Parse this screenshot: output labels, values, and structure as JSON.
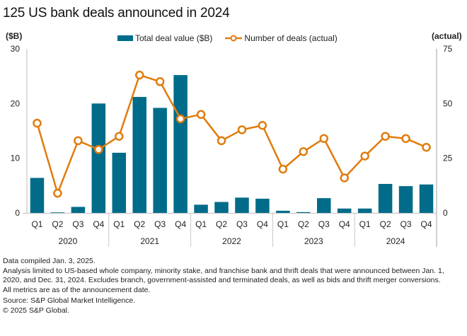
{
  "title": "125 US bank deals announced in 2024",
  "left_axis_unit": "($B)",
  "right_axis_unit": "(actual)",
  "legend": [
    {
      "label": "Total deal value ($B)",
      "type": "bar",
      "color": "#006c89"
    },
    {
      "label": "Number of deals (actual)",
      "type": "line",
      "color": "#e07c0c"
    }
  ],
  "chart_data": {
    "type": "bar",
    "title": "125 US bank deals announced in 2024",
    "categories": [
      "Q1",
      "Q2",
      "Q3",
      "Q4",
      "Q1",
      "Q2",
      "Q3",
      "Q4",
      "Q1",
      "Q2",
      "Q3",
      "Q4",
      "Q1",
      "Q2",
      "Q3",
      "Q4",
      "Q1",
      "Q2",
      "Q3",
      "Q4"
    ],
    "groups": [
      {
        "label": "2020",
        "count": 4
      },
      {
        "label": "2021",
        "count": 4
      },
      {
        "label": "2022",
        "count": 4
      },
      {
        "label": "2023",
        "count": 4
      },
      {
        "label": "2024",
        "count": 4
      }
    ],
    "series": [
      {
        "name": "Total deal value ($B)",
        "type": "bar",
        "axis": "left",
        "color": "#006c89",
        "values": [
          6.4,
          0.1,
          1.1,
          20.0,
          11.0,
          21.2,
          19.2,
          25.2,
          1.5,
          2.0,
          2.8,
          2.6,
          0.4,
          0.15,
          2.7,
          0.8,
          0.8,
          5.3,
          4.9,
          5.2
        ]
      },
      {
        "name": "Number of deals (actual)",
        "type": "line",
        "axis": "right",
        "color": "#e07c0c",
        "values": [
          41,
          9,
          33,
          29,
          35,
          63,
          60,
          43,
          45,
          33,
          38,
          40,
          20,
          28,
          34,
          16,
          26,
          35,
          34,
          30
        ]
      }
    ],
    "left_axis": {
      "label": "($B)",
      "ylim": [
        0,
        30
      ],
      "ticks": [
        0,
        10,
        20,
        30
      ]
    },
    "right_axis": {
      "label": "(actual)",
      "ylim": [
        0,
        75
      ],
      "ticks": [
        0,
        25,
        50,
        75
      ]
    },
    "grid": false,
    "legend_position": "top-center"
  },
  "notes": [
    "Data compiled Jan. 3, 2025.",
    "Analysis limited to US-based whole company, minority stake, and franchise bank and thrift deals that were announced between Jan. 1, 2020, and Dec. 31, 2024. Excludes branch, government-assisted and terminated deals, as well as bids and thrift merger conversions.",
    "All metrics are as of the announcement date.",
    "Source: S&P Global Market Intelligence.",
    "© 2025 S&P Global."
  ]
}
